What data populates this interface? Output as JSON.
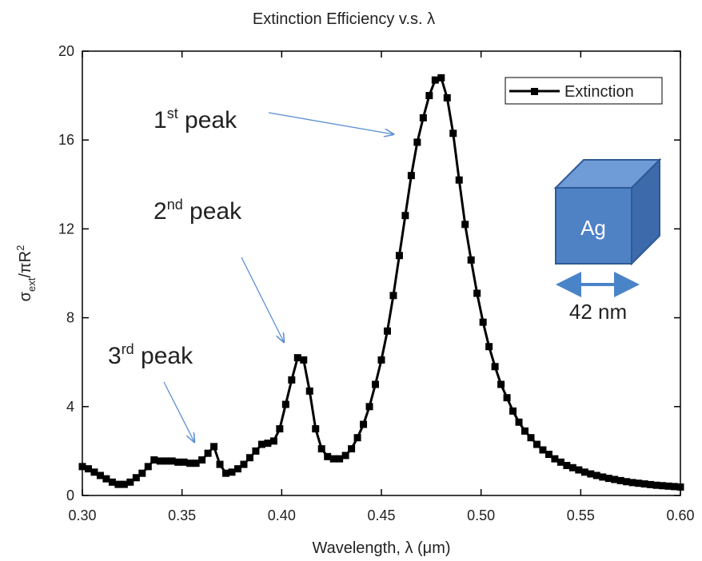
{
  "chart_data": {
    "type": "line",
    "title": "Extinction Efficiency v.s. λ",
    "xlabel": "Wavelength, λ (μm)",
    "ylabel": [
      "σ",
      "ext",
      "/πR",
      "2"
    ],
    "x": [
      0.3,
      0.303,
      0.306,
      0.309,
      0.312,
      0.315,
      0.318,
      0.321,
      0.324,
      0.327,
      0.33,
      0.333,
      0.336,
      0.339,
      0.342,
      0.345,
      0.348,
      0.351,
      0.354,
      0.357,
      0.36,
      0.363,
      0.366,
      0.369,
      0.372,
      0.375,
      0.378,
      0.381,
      0.384,
      0.387,
      0.39,
      0.393,
      0.396,
      0.399,
      0.402,
      0.405,
      0.408,
      0.411,
      0.414,
      0.417,
      0.42,
      0.423,
      0.426,
      0.429,
      0.432,
      0.435,
      0.438,
      0.441,
      0.444,
      0.447,
      0.45,
      0.453,
      0.456,
      0.459,
      0.462,
      0.465,
      0.468,
      0.471,
      0.474,
      0.477,
      0.48,
      0.483,
      0.486,
      0.489,
      0.492,
      0.495,
      0.498,
      0.501,
      0.504,
      0.507,
      0.51,
      0.513,
      0.516,
      0.519,
      0.522,
      0.525,
      0.528,
      0.531,
      0.534,
      0.537,
      0.54,
      0.543,
      0.546,
      0.549,
      0.552,
      0.555,
      0.558,
      0.561,
      0.564,
      0.567,
      0.57,
      0.573,
      0.576,
      0.579,
      0.582,
      0.585,
      0.588,
      0.591,
      0.594,
      0.597,
      0.6
    ],
    "series": [
      {
        "name": "Extinction",
        "color": "#000000",
        "values": [
          1.3,
          1.2,
          1.05,
          0.9,
          0.75,
          0.6,
          0.5,
          0.5,
          0.6,
          0.8,
          1.0,
          1.3,
          1.6,
          1.55,
          1.55,
          1.55,
          1.5,
          1.5,
          1.45,
          1.45,
          1.6,
          1.9,
          2.2,
          1.4,
          1.0,
          1.05,
          1.2,
          1.4,
          1.7,
          2.0,
          2.3,
          2.35,
          2.45,
          3.0,
          4.1,
          5.2,
          6.2,
          6.1,
          4.7,
          3.0,
          2.1,
          1.75,
          1.65,
          1.65,
          1.8,
          2.1,
          2.6,
          3.2,
          4.0,
          5.0,
          6.1,
          7.4,
          9.0,
          10.8,
          12.6,
          14.4,
          15.9,
          17.0,
          18.0,
          18.7,
          18.8,
          17.9,
          16.3,
          14.2,
          12.2,
          10.6,
          9.1,
          7.8,
          6.7,
          5.8,
          5.0,
          4.4,
          3.8,
          3.3,
          2.9,
          2.6,
          2.3,
          2.05,
          1.85,
          1.65,
          1.5,
          1.35,
          1.25,
          1.15,
          1.05,
          0.97,
          0.9,
          0.83,
          0.77,
          0.72,
          0.67,
          0.62,
          0.58,
          0.55,
          0.52,
          0.49,
          0.46,
          0.44,
          0.42,
          0.4,
          0.38
        ]
      }
    ],
    "xlim": [
      0.3,
      0.6
    ],
    "xticks": [
      {
        "value": 0.3,
        "label": "0.30"
      },
      0.35,
      {
        "value": 0.4,
        "label": "0.40"
      },
      0.45,
      {
        "value": 0.5,
        "label": "0.50"
      },
      0.55,
      {
        "value": 0.6,
        "label": "0.60"
      }
    ],
    "ylim": [
      0,
      20
    ],
    "yticks": [
      0,
      4,
      8,
      12,
      16,
      20
    ],
    "legend": "upper right",
    "annotations": [
      {
        "main": "1",
        "sup": "st",
        "rest": " peak"
      },
      {
        "main": "2",
        "sup": "nd",
        "rest": " peak"
      },
      {
        "main": "3",
        "sup": "rd",
        "rest": " peak"
      }
    ],
    "inset": {
      "material": "Ag",
      "size": "42 nm"
    }
  }
}
